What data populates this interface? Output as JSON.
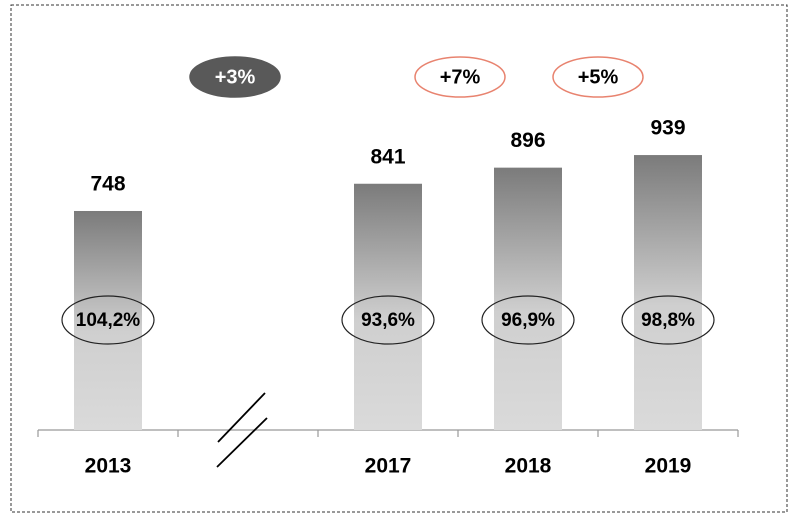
{
  "chart_data": {
    "type": "bar",
    "categories": [
      "2013",
      null,
      "2017",
      "2018",
      "2019"
    ],
    "values": [
      748,
      null,
      841,
      896,
      939
    ],
    "ratio_labels": [
      "104,2%",
      null,
      "93,6%",
      "96,9%",
      "98,8%"
    ],
    "growth": [
      {
        "text": "+3%",
        "fill": "#595959",
        "stroke": "#595959",
        "text_color": "#ffffff"
      },
      {
        "text": "+7%",
        "fill": "#ffffff",
        "stroke": "#e8836f",
        "text_color": "#000000"
      },
      {
        "text": "+5%",
        "fill": "#ffffff",
        "stroke": "#e8836f",
        "text_color": "#000000"
      }
    ],
    "axis_break": true
  }
}
